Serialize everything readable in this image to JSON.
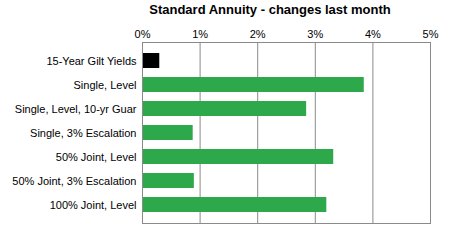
{
  "chart_data": {
    "type": "bar",
    "orientation": "horizontal",
    "title": "Standard Annuity - changes last month",
    "categories": [
      "15-Year Gilt Yields",
      "Single, Level",
      "Single, Level, 10-yr Guar",
      "Single, 3% Escalation",
      "50% Joint, Level",
      "50% Joint, 3% Escalation",
      "100% Joint, Level"
    ],
    "values": [
      0.3,
      3.85,
      2.85,
      0.88,
      3.32,
      0.9,
      3.2
    ],
    "colors": [
      "#000000",
      "#2da84a",
      "#2da84a",
      "#2da84a",
      "#2da84a",
      "#2da84a",
      "#2da84a"
    ],
    "xlim": [
      0,
      5
    ],
    "xticks": [
      {
        "value": 0,
        "label": "0%"
      },
      {
        "value": 1,
        "label": "1%"
      },
      {
        "value": 2,
        "label": "2%"
      },
      {
        "value": 3,
        "label": "3%"
      },
      {
        "value": 4,
        "label": "4%"
      },
      {
        "value": 5,
        "label": "5%"
      }
    ],
    "grid": true
  }
}
